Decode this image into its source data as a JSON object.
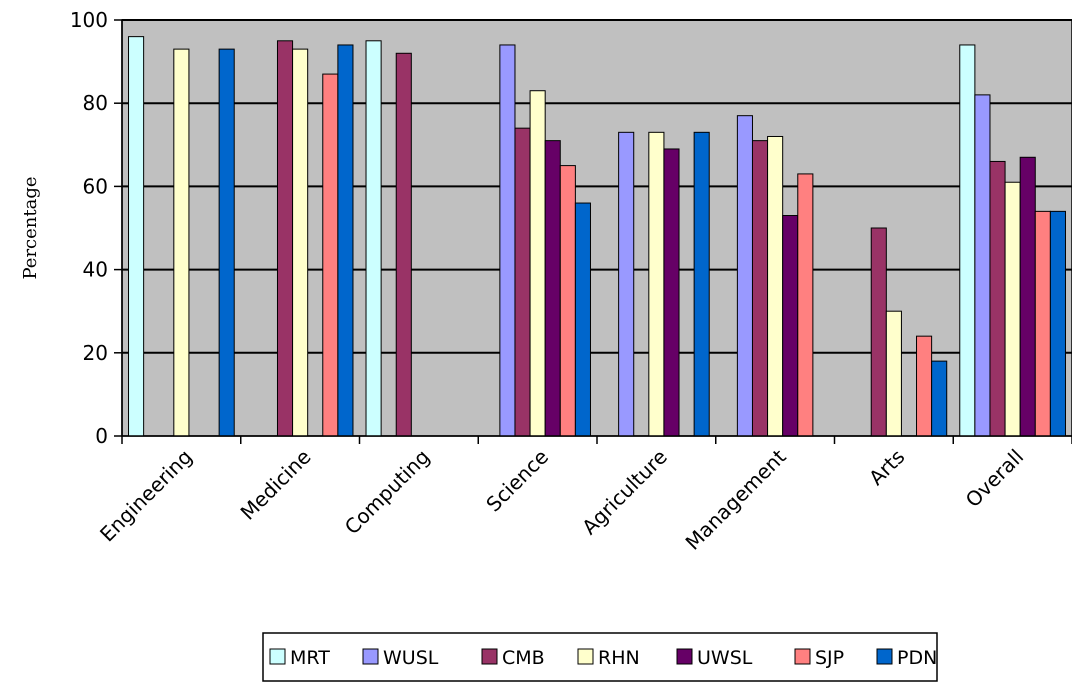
{
  "chart_data": {
    "type": "bar",
    "title": "",
    "xlabel": "",
    "ylabel": "Percentage",
    "ylim": [
      0,
      100
    ],
    "yticks": [
      "0",
      "20",
      "40",
      "60",
      "80",
      "100"
    ],
    "grid": true,
    "legend_position": "bottom",
    "plot_background": "#c0c0c0",
    "categories": [
      "Engineering",
      "Medicine",
      "Computing",
      "Science",
      "Agriculture",
      "Management",
      "Arts",
      "Overall"
    ],
    "series": [
      {
        "name": "MRT",
        "color": "#ccffff",
        "values": [
          96,
          null,
          95,
          null,
          null,
          null,
          null,
          94
        ]
      },
      {
        "name": "WUSL",
        "color": "#9999ff",
        "values": [
          null,
          null,
          null,
          94,
          73,
          77,
          null,
          82
        ]
      },
      {
        "name": "CMB",
        "color": "#993366",
        "values": [
          null,
          95,
          92,
          74,
          null,
          71,
          50,
          66
        ]
      },
      {
        "name": "RHN",
        "color": "#ffffcc",
        "values": [
          93,
          93,
          null,
          83,
          73,
          72,
          30,
          61
        ]
      },
      {
        "name": "UWSL",
        "color": "#660066",
        "values": [
          null,
          null,
          null,
          71,
          69,
          53,
          null,
          67
        ]
      },
      {
        "name": "SJP",
        "color": "#ff8080",
        "values": [
          null,
          87,
          null,
          65,
          null,
          63,
          24,
          54
        ]
      },
      {
        "name": "PDN",
        "color": "#0066cc",
        "values": [
          93,
          94,
          null,
          56,
          73,
          null,
          18,
          54
        ]
      }
    ]
  }
}
